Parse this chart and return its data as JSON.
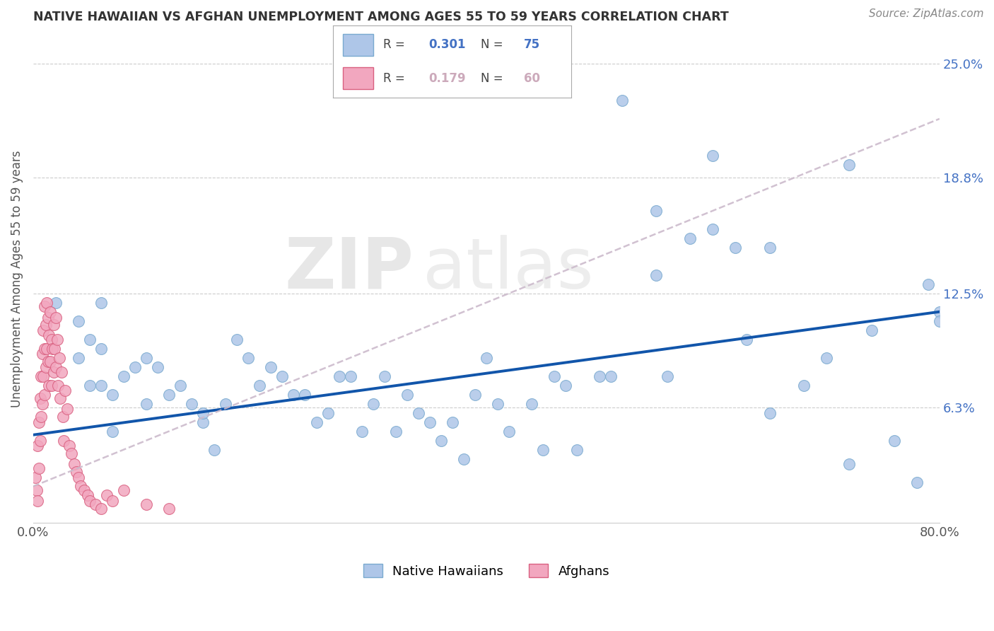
{
  "title": "NATIVE HAWAIIAN VS AFGHAN UNEMPLOYMENT AMONG AGES 55 TO 59 YEARS CORRELATION CHART",
  "source": "Source: ZipAtlas.com",
  "ylabel": "Unemployment Among Ages 55 to 59 years",
  "xlim": [
    0.0,
    0.8
  ],
  "ylim": [
    0.0,
    0.266
  ],
  "xticks": [
    0.0,
    0.1,
    0.2,
    0.3,
    0.4,
    0.5,
    0.6,
    0.7,
    0.8
  ],
  "xticklabels": [
    "0.0%",
    "",
    "",
    "",
    "",
    "",
    "",
    "",
    "80.0%"
  ],
  "yticks_right": [
    0.0,
    0.063,
    0.125,
    0.188,
    0.25
  ],
  "yticklabels_right": [
    "",
    "6.3%",
    "12.5%",
    "18.8%",
    "25.0%"
  ],
  "native_hawaiian_color": "#aec6e8",
  "native_hawaiian_edge": "#7aaacf",
  "afghan_color": "#f2a7bf",
  "afghan_edge": "#d96080",
  "trend_nh_color": "#1155aa",
  "trend_af_color": "#ccaabb",
  "watermark_zip": "ZIP",
  "watermark_atlas": "atlas",
  "background_color": "#ffffff",
  "grid_color": "#cccccc",
  "title_color": "#333333",
  "axis_label_color": "#555555",
  "tick_label_color": "#555555",
  "right_tick_color": "#4472c4",
  "native_hawaiians_x": [
    0.02,
    0.04,
    0.04,
    0.05,
    0.05,
    0.06,
    0.06,
    0.06,
    0.07,
    0.07,
    0.08,
    0.09,
    0.1,
    0.1,
    0.11,
    0.12,
    0.13,
    0.14,
    0.15,
    0.15,
    0.16,
    0.17,
    0.18,
    0.19,
    0.2,
    0.21,
    0.22,
    0.23,
    0.24,
    0.25,
    0.26,
    0.27,
    0.28,
    0.29,
    0.3,
    0.31,
    0.32,
    0.33,
    0.34,
    0.35,
    0.36,
    0.37,
    0.38,
    0.39,
    0.4,
    0.41,
    0.42,
    0.44,
    0.45,
    0.46,
    0.47,
    0.48,
    0.5,
    0.51,
    0.52,
    0.55,
    0.56,
    0.58,
    0.6,
    0.62,
    0.63,
    0.65,
    0.68,
    0.7,
    0.72,
    0.74,
    0.76,
    0.78,
    0.79,
    0.8,
    0.8,
    0.72,
    0.65,
    0.6,
    0.55
  ],
  "native_hawaiians_y": [
    0.12,
    0.11,
    0.09,
    0.1,
    0.075,
    0.12,
    0.095,
    0.075,
    0.07,
    0.05,
    0.08,
    0.085,
    0.09,
    0.065,
    0.085,
    0.07,
    0.075,
    0.065,
    0.055,
    0.06,
    0.04,
    0.065,
    0.1,
    0.09,
    0.075,
    0.085,
    0.08,
    0.07,
    0.07,
    0.055,
    0.06,
    0.08,
    0.08,
    0.05,
    0.065,
    0.08,
    0.05,
    0.07,
    0.06,
    0.055,
    0.045,
    0.055,
    0.035,
    0.07,
    0.09,
    0.065,
    0.05,
    0.065,
    0.04,
    0.08,
    0.075,
    0.04,
    0.08,
    0.08,
    0.23,
    0.135,
    0.08,
    0.155,
    0.16,
    0.15,
    0.1,
    0.15,
    0.075,
    0.09,
    0.032,
    0.105,
    0.045,
    0.022,
    0.13,
    0.115,
    0.11,
    0.195,
    0.06,
    0.2,
    0.17
  ],
  "afghans_x": [
    0.002,
    0.003,
    0.004,
    0.004,
    0.005,
    0.005,
    0.006,
    0.006,
    0.007,
    0.007,
    0.008,
    0.008,
    0.009,
    0.009,
    0.01,
    0.01,
    0.01,
    0.011,
    0.011,
    0.012,
    0.012,
    0.013,
    0.013,
    0.014,
    0.014,
    0.015,
    0.015,
    0.016,
    0.016,
    0.017,
    0.018,
    0.018,
    0.019,
    0.02,
    0.02,
    0.021,
    0.022,
    0.023,
    0.024,
    0.025,
    0.026,
    0.027,
    0.028,
    0.03,
    0.032,
    0.034,
    0.036,
    0.038,
    0.04,
    0.042,
    0.045,
    0.048,
    0.05,
    0.055,
    0.06,
    0.065,
    0.07,
    0.08,
    0.1,
    0.12
  ],
  "afghans_y": [
    0.025,
    0.018,
    0.042,
    0.012,
    0.055,
    0.03,
    0.068,
    0.045,
    0.08,
    0.058,
    0.092,
    0.065,
    0.105,
    0.08,
    0.118,
    0.095,
    0.07,
    0.108,
    0.085,
    0.12,
    0.095,
    0.112,
    0.088,
    0.102,
    0.075,
    0.115,
    0.088,
    0.1,
    0.075,
    0.095,
    0.108,
    0.082,
    0.095,
    0.112,
    0.085,
    0.1,
    0.075,
    0.09,
    0.068,
    0.082,
    0.058,
    0.045,
    0.072,
    0.062,
    0.042,
    0.038,
    0.032,
    0.028,
    0.025,
    0.02,
    0.018,
    0.015,
    0.012,
    0.01,
    0.008,
    0.015,
    0.012,
    0.018,
    0.01,
    0.008
  ]
}
